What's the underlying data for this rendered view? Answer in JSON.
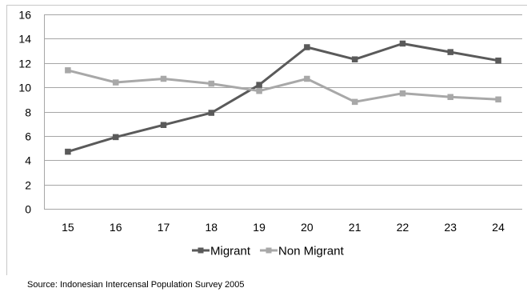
{
  "chart_data": {
    "type": "line",
    "x": [
      "15",
      "16",
      "17",
      "18",
      "19",
      "20",
      "21",
      "22",
      "23",
      "24"
    ],
    "ylim": [
      0,
      16
    ],
    "yticks": [
      0,
      2,
      4,
      6,
      8,
      10,
      12,
      14,
      16
    ],
    "grid": "horizontal",
    "legend_position": "bottom",
    "series": [
      {
        "name": "Migrant",
        "color": "#5a5a5a",
        "marker": "square",
        "values": [
          4.7,
          5.9,
          6.9,
          7.9,
          10.2,
          13.3,
          12.3,
          13.6,
          12.9,
          12.2
        ]
      },
      {
        "name": "Non Migrant",
        "color": "#a8a8a8",
        "marker": "square",
        "values": [
          11.4,
          10.4,
          10.7,
          10.3,
          9.7,
          10.7,
          8.8,
          9.5,
          9.2,
          9.0
        ]
      }
    ],
    "source": "Source: Indonesian Intercensal Population Survey 2005"
  }
}
